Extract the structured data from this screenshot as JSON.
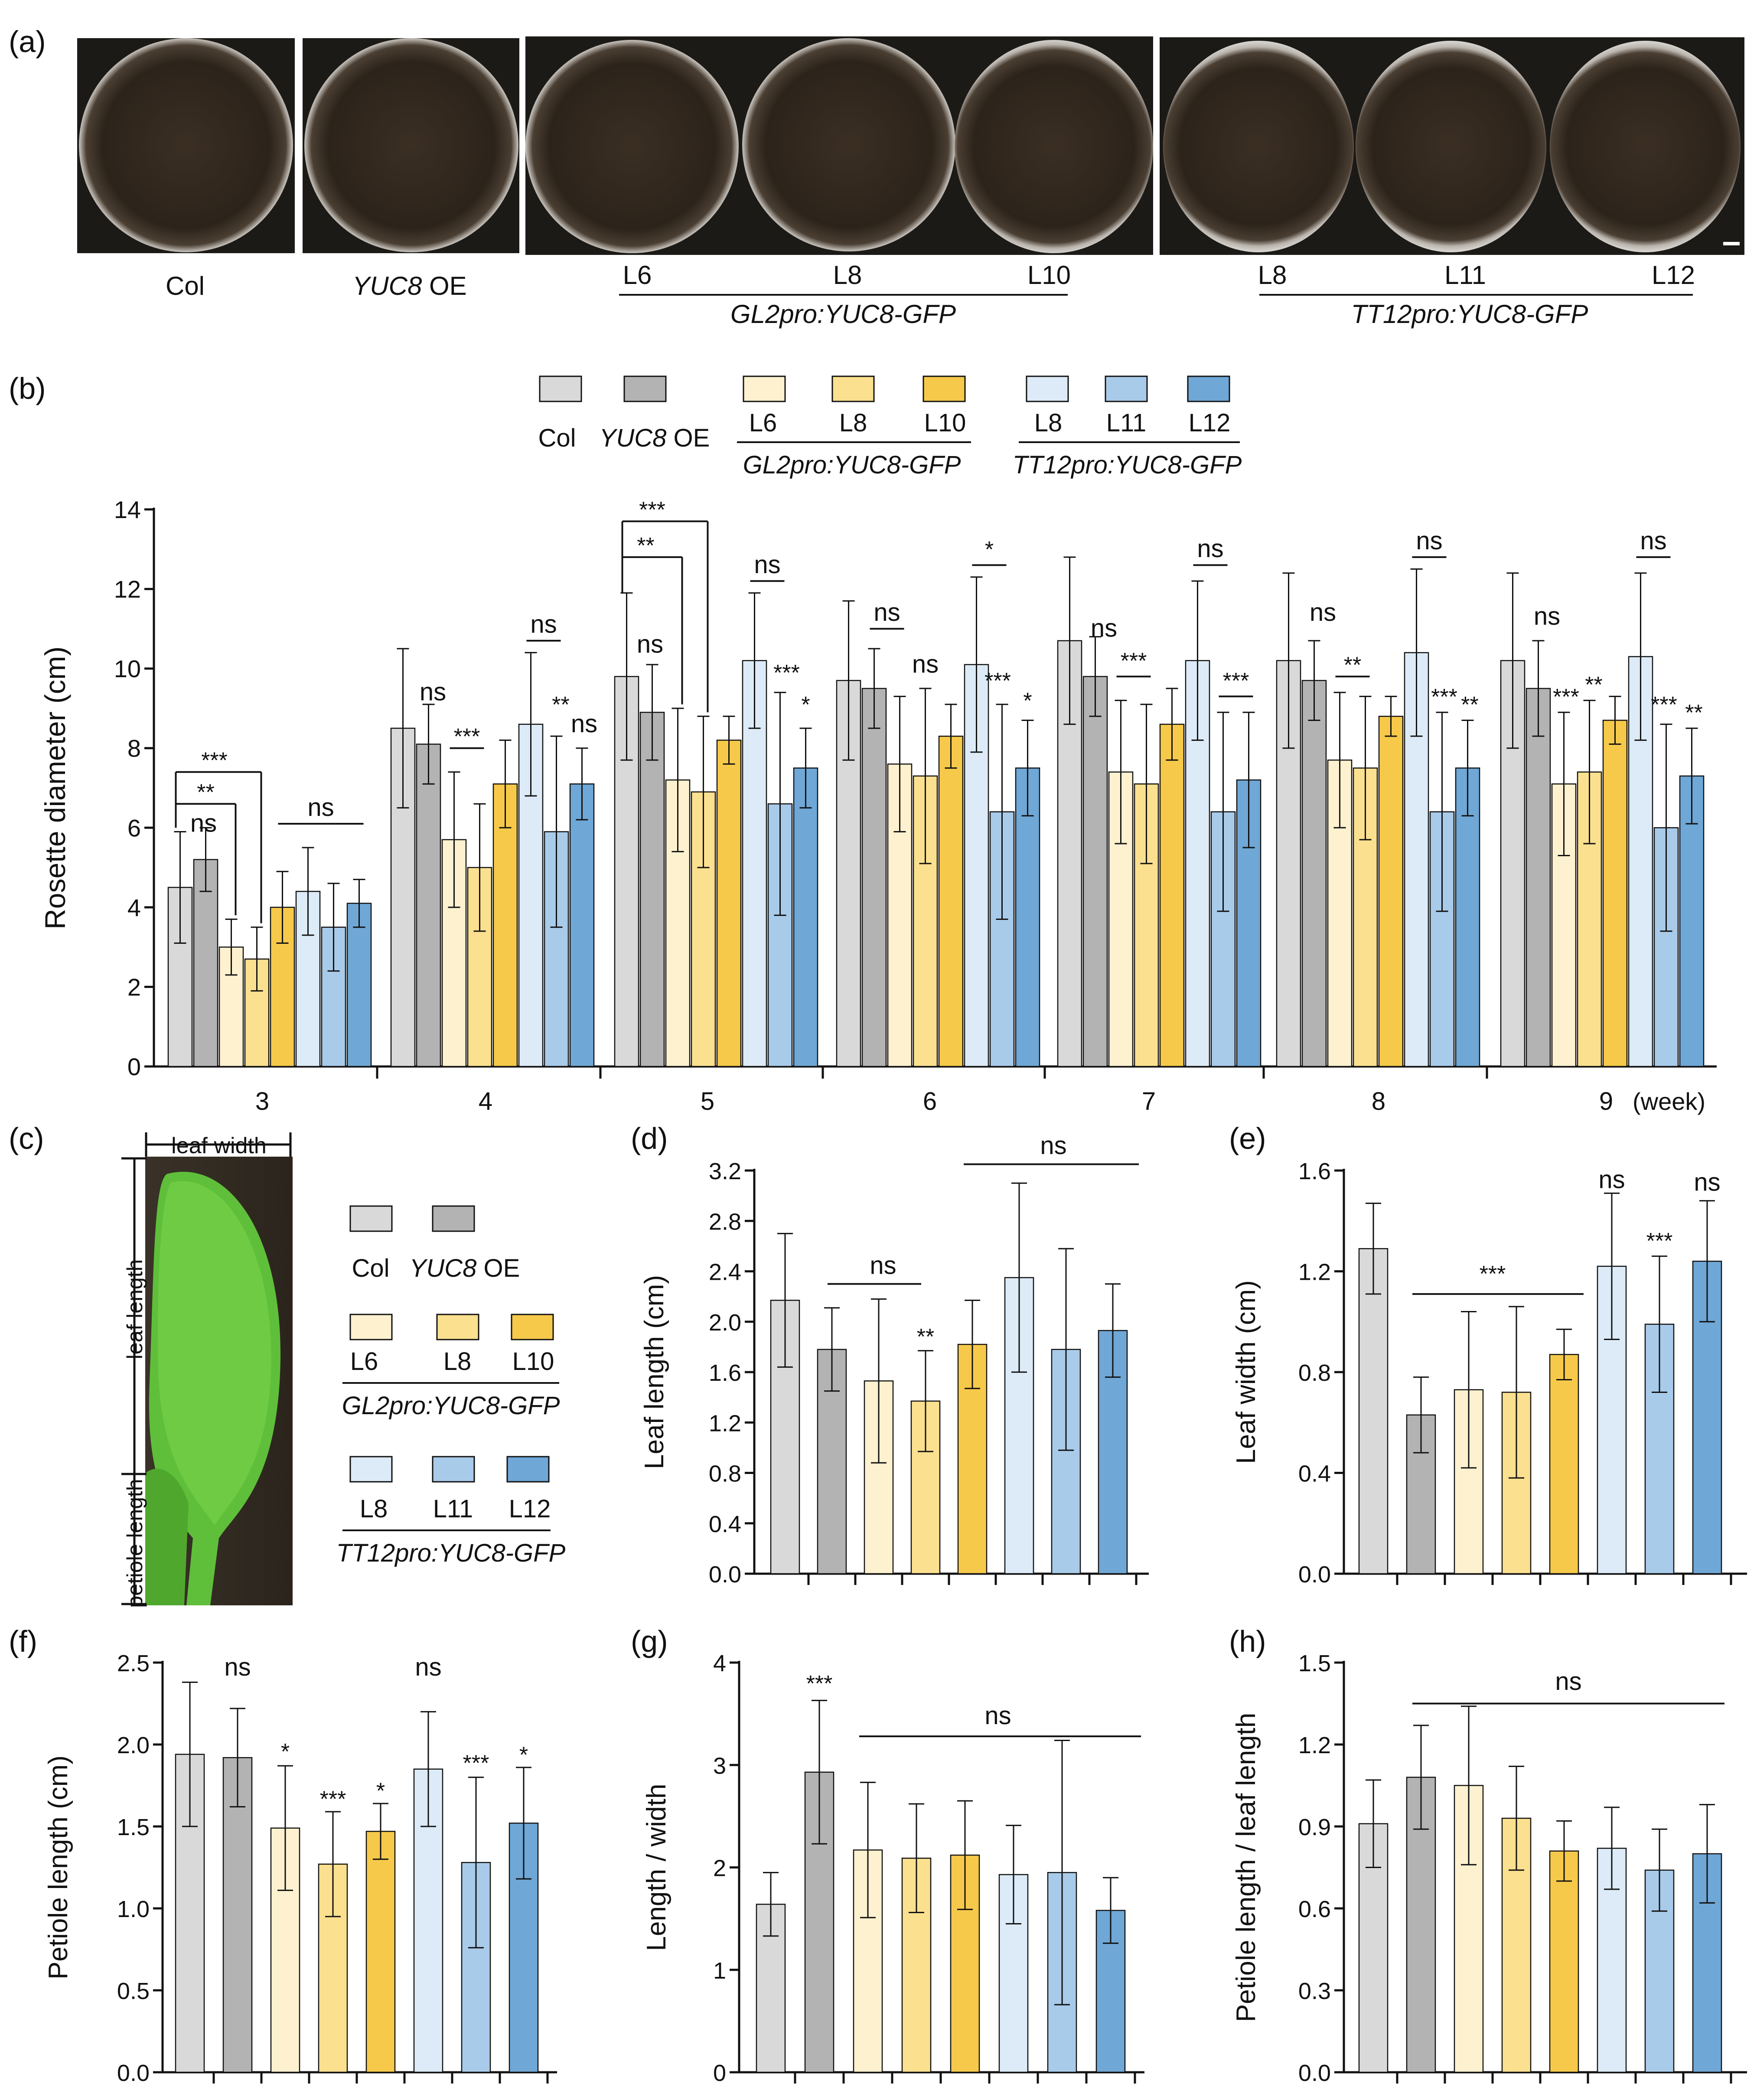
{
  "panel_labels": {
    "a": "(a)",
    "b": "(b)",
    "c": "(c)",
    "d": "(d)",
    "e": "(e)",
    "f": "(f)",
    "g": "(g)",
    "h": "(h)"
  },
  "colors": {
    "Col": "#d9d9d9",
    "YUC8 OE": "#b3b3b3",
    "GL2 L6": "#fdf1cf",
    "GL2 L8": "#fbe08f",
    "GL2 L10": "#f6c94a",
    "TT12 L8": "#dcebf7",
    "TT12 L11": "#a9cbea",
    "TT12 L12": "#6fa7d6"
  },
  "panel_a": {
    "labels": {
      "col": "Col",
      "yuc8": "YUC8",
      "oe": "OE",
      "l6": "L6",
      "l8": "L8",
      "l10": "L10",
      "gl2": "GL2pro:YUC8-GFP",
      "t8": "L8",
      "t11": "L11",
      "t12": "L12",
      "tt12": "TT12pro:YUC8-GFP"
    }
  },
  "legend": {
    "col": "Col",
    "yuc8": "YUC8",
    "oe": "OE",
    "l6": "L6",
    "l8": "L8",
    "l10": "L10",
    "gl2": "GL2pro:YUC8-GFP",
    "t8": "L8",
    "t11": "L11",
    "t12": "L12",
    "tt12": "TT12pro:YUC8-GFP"
  },
  "panel_c": {
    "leaf_width": "leaf width",
    "leaf_length": "leaf length",
    "petiole_length": "petiole length"
  },
  "chart_data": [
    {
      "id": "b",
      "type": "bar",
      "ylabel": "Rosette diameter (cm)",
      "ylim": [
        0,
        14
      ],
      "yticks": [
        0,
        2,
        4,
        6,
        8,
        10,
        12,
        14
      ],
      "categories": [
        "3",
        "4",
        "5",
        "6",
        "7",
        "8",
        "9"
      ],
      "xunit": "(week)",
      "series": [
        {
          "name": "Col",
          "values": [
            4.5,
            8.5,
            9.8,
            9.7,
            10.7,
            10.2,
            10.2
          ],
          "err": [
            1.4,
            2.0,
            2.1,
            2.0,
            2.1,
            2.2,
            2.2
          ]
        },
        {
          "name": "YUC8 OE",
          "values": [
            5.2,
            8.1,
            8.9,
            9.5,
            9.8,
            9.7,
            9.5
          ],
          "err": [
            0.8,
            1.0,
            1.2,
            1.0,
            1.0,
            1.0,
            1.2
          ]
        },
        {
          "name": "GL2 L6",
          "values": [
            3.0,
            5.7,
            7.2,
            7.6,
            7.4,
            7.7,
            7.1
          ],
          "err": [
            0.7,
            1.7,
            1.8,
            1.7,
            1.8,
            1.7,
            1.8
          ]
        },
        {
          "name": "GL2 L8",
          "values": [
            2.7,
            5.0,
            6.9,
            7.3,
            7.1,
            7.5,
            7.4
          ],
          "err": [
            0.8,
            1.6,
            1.9,
            2.2,
            2.0,
            1.8,
            1.8
          ]
        },
        {
          "name": "GL2 L10",
          "values": [
            4.0,
            7.1,
            8.2,
            8.3,
            8.6,
            8.8,
            8.7
          ],
          "err": [
            0.9,
            1.1,
            0.6,
            0.8,
            0.9,
            0.5,
            0.6
          ]
        },
        {
          "name": "TT12 L8",
          "values": [
            4.4,
            8.6,
            10.2,
            10.1,
            10.2,
            10.4,
            10.3
          ],
          "err": [
            1.1,
            1.8,
            1.7,
            2.2,
            2.0,
            2.1,
            2.1
          ]
        },
        {
          "name": "TT12 L11",
          "values": [
            3.5,
            5.9,
            6.6,
            6.4,
            6.4,
            6.4,
            6.0
          ],
          "err": [
            1.1,
            2.4,
            2.8,
            2.7,
            2.5,
            2.5,
            2.6
          ]
        },
        {
          "name": "TT12 L12",
          "values": [
            4.1,
            7.1,
            7.5,
            7.5,
            7.2,
            7.5,
            7.3
          ],
          "err": [
            0.6,
            0.9,
            1.0,
            1.2,
            1.7,
            1.2,
            1.2
          ]
        }
      ],
      "annotations": [
        "***",
        "**",
        "ns",
        "ns",
        "ns",
        "***",
        "ns",
        "**",
        "ns",
        "***",
        "**",
        "ns",
        "ns",
        "***",
        "*",
        "ns",
        "ns",
        "*",
        "***",
        "*",
        "ns",
        "***",
        "ns",
        "***",
        "ns",
        "**",
        "ns",
        "***",
        "**",
        "ns",
        "***",
        "**",
        "ns",
        "***",
        "**"
      ]
    },
    {
      "id": "d",
      "type": "bar",
      "ylabel": "Leaf  length (cm)",
      "ylim": [
        0,
        3.2
      ],
      "yticks": [
        "0.0",
        "0.4",
        "0.8",
        "1.2",
        "1.6",
        "2.0",
        "2.4",
        "2.8",
        "3.2"
      ],
      "categories": [
        "Col",
        "YUC8 OE",
        "GL2 L6",
        "GL2 L8",
        "GL2 L10",
        "TT12 L8",
        "TT12 L11",
        "TT12 L12"
      ],
      "values": [
        2.17,
        1.78,
        1.53,
        1.37,
        1.82,
        2.35,
        1.78,
        1.93
      ],
      "err": [
        0.53,
        0.33,
        0.65,
        0.4,
        0.35,
        0.75,
        0.8,
        0.37
      ],
      "annotations": [
        "ns",
        "**",
        "ns"
      ]
    },
    {
      "id": "e",
      "type": "bar",
      "ylabel": "Leaf width (cm)",
      "ylim": [
        0,
        1.6
      ],
      "yticks": [
        "0.0",
        "0.4",
        "0.8",
        "1.2",
        "1.6"
      ],
      "categories": [
        "Col",
        "YUC8 OE",
        "GL2 L6",
        "GL2 L8",
        "GL2 L10",
        "TT12 L8",
        "TT12 L11",
        "TT12 L12"
      ],
      "values": [
        1.29,
        0.63,
        0.73,
        0.72,
        0.87,
        1.22,
        0.99,
        1.24
      ],
      "err": [
        0.18,
        0.15,
        0.31,
        0.34,
        0.1,
        0.29,
        0.27,
        0.24
      ],
      "annotations": [
        "***",
        "ns",
        "***",
        "ns"
      ]
    },
    {
      "id": "f",
      "type": "bar",
      "ylabel": "Petiole length (cm)",
      "ylim": [
        0,
        2.5
      ],
      "yticks": [
        "0.0",
        "0.5",
        "1.0",
        "1.5",
        "2.0",
        "2.5"
      ],
      "categories": [
        "Col",
        "YUC8 OE",
        "GL2 L6",
        "GL2 L8",
        "GL2 L10",
        "TT12 L8",
        "TT12 L11",
        "TT12 L12"
      ],
      "values": [
        1.94,
        1.92,
        1.49,
        1.27,
        1.47,
        1.85,
        1.28,
        1.52
      ],
      "err": [
        0.44,
        0.3,
        0.38,
        0.32,
        0.17,
        0.35,
        0.52,
        0.34
      ],
      "annotations": [
        "ns",
        "*",
        "***",
        "*",
        "ns",
        "***",
        "*"
      ]
    },
    {
      "id": "g",
      "type": "bar",
      "ylabel": "Length / width",
      "ylim": [
        0,
        4
      ],
      "yticks": [
        "0",
        "1",
        "2",
        "3",
        "4"
      ],
      "categories": [
        "Col",
        "YUC8 OE",
        "GL2 L6",
        "GL2 L8",
        "GL2 L10",
        "TT12 L8",
        "TT12 L11",
        "TT12 L12"
      ],
      "values": [
        1.64,
        2.93,
        2.17,
        2.09,
        2.12,
        1.93,
        1.95,
        1.58
      ],
      "err": [
        0.31,
        0.7,
        0.66,
        0.53,
        0.53,
        0.48,
        1.29,
        0.32
      ],
      "annotations": [
        "***",
        "ns"
      ]
    },
    {
      "id": "h",
      "type": "bar",
      "ylabel": "Petiole length / leaf length",
      "ylim": [
        0,
        1.5
      ],
      "yticks": [
        "0.0",
        "0.3",
        "0.6",
        "0.9",
        "1.2",
        "1.5"
      ],
      "categories": [
        "Col",
        "YUC8 OE",
        "GL2 L6",
        "GL2 L8",
        "GL2 L10",
        "TT12 L8",
        "TT12 L11",
        "TT12 L12"
      ],
      "values": [
        0.91,
        1.08,
        1.05,
        0.93,
        0.81,
        0.82,
        0.74,
        0.8
      ],
      "err": [
        0.16,
        0.19,
        0.29,
        0.19,
        0.11,
        0.15,
        0.15,
        0.18
      ],
      "annotations": [
        "ns"
      ]
    }
  ]
}
